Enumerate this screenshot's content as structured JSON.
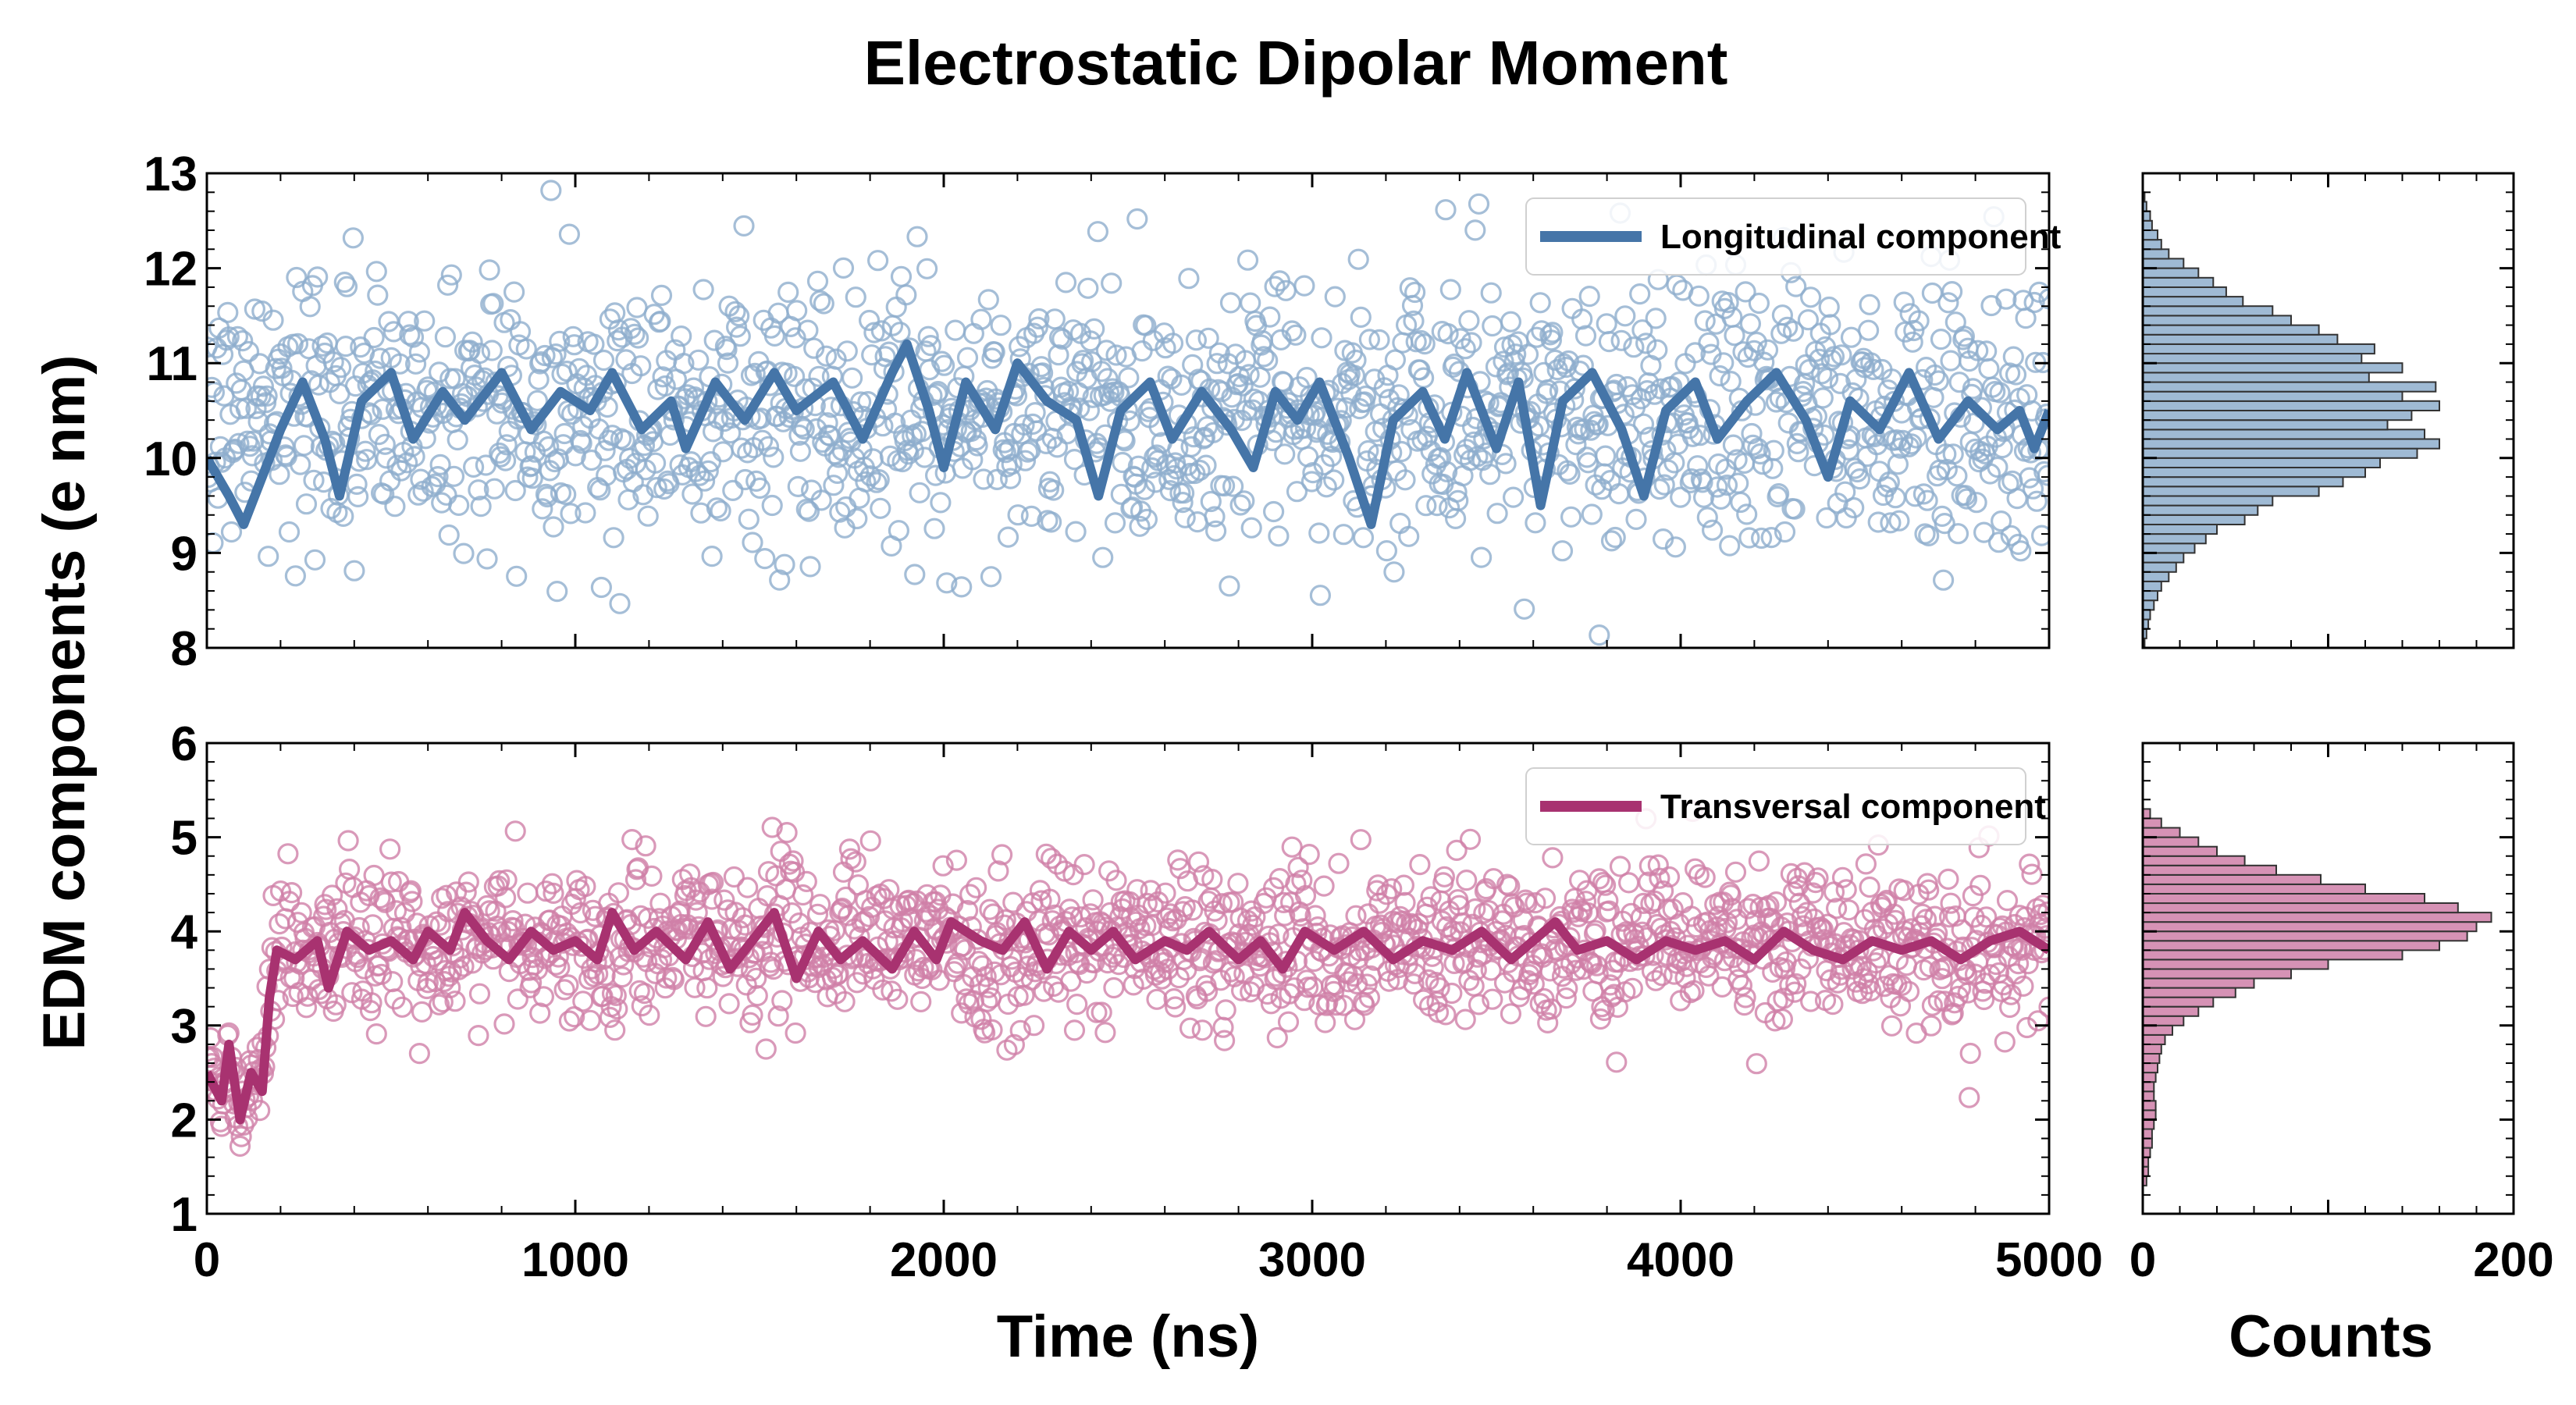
{
  "chart_data": {
    "type": "scatter",
    "title": "Electrostatic Dipolar Moment",
    "ylabel": "EDM components (e nm)",
    "xlabel": "Time (ns)",
    "hist_xlabel": "Counts",
    "xlim": [
      0,
      5000
    ],
    "xticks": [
      "0",
      "1000",
      "2000",
      "3000",
      "4000",
      "5000"
    ],
    "hist_xlim": [
      0,
      200
    ],
    "hist_xticks": [
      "0",
      "200"
    ],
    "series": [
      {
        "name": "Longitudinal component",
        "color": "#4575a8",
        "marker_color": "#8eaecd",
        "ylim": [
          8,
          13
        ],
        "yticks": [
          "8",
          "9",
          "10",
          "11",
          "12",
          "13"
        ],
        "scatter_mean": 10.5,
        "scatter_std": 0.72,
        "smoothed_points": [
          [
            0,
            10.0
          ],
          [
            60,
            9.6
          ],
          [
            100,
            9.3
          ],
          [
            140,
            9.7
          ],
          [
            200,
            10.3
          ],
          [
            260,
            10.8
          ],
          [
            320,
            10.2
          ],
          [
            360,
            9.6
          ],
          [
            420,
            10.6
          ],
          [
            500,
            10.9
          ],
          [
            560,
            10.2
          ],
          [
            640,
            10.7
          ],
          [
            700,
            10.4
          ],
          [
            800,
            10.9
          ],
          [
            880,
            10.3
          ],
          [
            960,
            10.7
          ],
          [
            1040,
            10.5
          ],
          [
            1100,
            10.9
          ],
          [
            1180,
            10.3
          ],
          [
            1260,
            10.6
          ],
          [
            1300,
            10.1
          ],
          [
            1380,
            10.8
          ],
          [
            1460,
            10.4
          ],
          [
            1540,
            10.9
          ],
          [
            1600,
            10.5
          ],
          [
            1700,
            10.8
          ],
          [
            1780,
            10.2
          ],
          [
            1860,
            10.9
          ],
          [
            1900,
            11.2
          ],
          [
            1960,
            10.5
          ],
          [
            2000,
            9.9
          ],
          [
            2060,
            10.8
          ],
          [
            2140,
            10.3
          ],
          [
            2200,
            11.0
          ],
          [
            2280,
            10.6
          ],
          [
            2360,
            10.4
          ],
          [
            2420,
            9.6
          ],
          [
            2480,
            10.5
          ],
          [
            2560,
            10.8
          ],
          [
            2620,
            10.2
          ],
          [
            2700,
            10.7
          ],
          [
            2780,
            10.3
          ],
          [
            2840,
            9.9
          ],
          [
            2900,
            10.7
          ],
          [
            2960,
            10.4
          ],
          [
            3020,
            10.8
          ],
          [
            3100,
            10.0
          ],
          [
            3160,
            9.3
          ],
          [
            3220,
            10.4
          ],
          [
            3300,
            10.7
          ],
          [
            3360,
            10.2
          ],
          [
            3420,
            10.9
          ],
          [
            3500,
            10.1
          ],
          [
            3560,
            10.8
          ],
          [
            3620,
            9.5
          ],
          [
            3680,
            10.6
          ],
          [
            3760,
            10.9
          ],
          [
            3840,
            10.3
          ],
          [
            3900,
            9.6
          ],
          [
            3960,
            10.5
          ],
          [
            4040,
            10.8
          ],
          [
            4100,
            10.2
          ],
          [
            4180,
            10.6
          ],
          [
            4260,
            10.9
          ],
          [
            4340,
            10.4
          ],
          [
            4400,
            9.8
          ],
          [
            4460,
            10.6
          ],
          [
            4540,
            10.3
          ],
          [
            4620,
            10.9
          ],
          [
            4700,
            10.2
          ],
          [
            4780,
            10.6
          ],
          [
            4860,
            10.3
          ],
          [
            4920,
            10.5
          ],
          [
            4960,
            10.1
          ],
          [
            5000,
            10.5
          ]
        ],
        "hist_bins": [
          8.0,
          8.1,
          8.2,
          8.3,
          8.4,
          8.5,
          8.6,
          8.7,
          8.8,
          8.9,
          9.0,
          9.1,
          9.2,
          9.3,
          9.4,
          9.5,
          9.6,
          9.7,
          9.8,
          9.9,
          10.0,
          10.1,
          10.2,
          10.3,
          10.4,
          10.5,
          10.6,
          10.7,
          10.8,
          10.9,
          11.0,
          11.1,
          11.2,
          11.3,
          11.4,
          11.5,
          11.6,
          11.7,
          11.8,
          11.9,
          12.0,
          12.1,
          12.2,
          12.3,
          12.4,
          12.5,
          12.6,
          12.7
        ],
        "hist_counts": [
          1,
          2,
          3,
          4,
          6,
          8,
          10,
          14,
          18,
          22,
          28,
          34,
          40,
          55,
          62,
          70,
          95,
          108,
          120,
          128,
          148,
          160,
          152,
          132,
          145,
          160,
          140,
          158,
          122,
          140,
          118,
          125,
          105,
          95,
          80,
          70,
          54,
          45,
          38,
          30,
          22,
          14,
          10,
          8,
          5,
          4,
          2,
          1
        ]
      },
      {
        "name": "Transversal component",
        "color": "#a83270",
        "marker_color": "#cf7fa8",
        "ylim": [
          1,
          6
        ],
        "yticks": [
          "1",
          "2",
          "3",
          "4",
          "5",
          "6"
        ],
        "scatter_mean": 3.88,
        "scatter_std": 0.42,
        "smoothed_points": [
          [
            0,
            2.5
          ],
          [
            40,
            2.2
          ],
          [
            60,
            2.8
          ],
          [
            90,
            2.0
          ],
          [
            120,
            2.5
          ],
          [
            150,
            2.3
          ],
          [
            170,
            3.3
          ],
          [
            190,
            3.8
          ],
          [
            240,
            3.7
          ],
          [
            300,
            3.9
          ],
          [
            330,
            3.4
          ],
          [
            380,
            4.0
          ],
          [
            440,
            3.8
          ],
          [
            500,
            3.9
          ],
          [
            560,
            3.7
          ],
          [
            600,
            4.0
          ],
          [
            660,
            3.8
          ],
          [
            700,
            4.2
          ],
          [
            760,
            3.9
          ],
          [
            820,
            3.7
          ],
          [
            880,
            4.0
          ],
          [
            940,
            3.8
          ],
          [
            1000,
            3.9
          ],
          [
            1060,
            3.7
          ],
          [
            1100,
            4.2
          ],
          [
            1160,
            3.8
          ],
          [
            1220,
            4.0
          ],
          [
            1300,
            3.7
          ],
          [
            1360,
            4.1
          ],
          [
            1420,
            3.6
          ],
          [
            1480,
            3.9
          ],
          [
            1540,
            4.2
          ],
          [
            1600,
            3.5
          ],
          [
            1660,
            4.0
          ],
          [
            1720,
            3.7
          ],
          [
            1780,
            3.9
          ],
          [
            1860,
            3.6
          ],
          [
            1920,
            4.0
          ],
          [
            1980,
            3.7
          ],
          [
            2020,
            4.1
          ],
          [
            2100,
            3.9
          ],
          [
            2160,
            3.8
          ],
          [
            2220,
            4.1
          ],
          [
            2280,
            3.6
          ],
          [
            2340,
            4.0
          ],
          [
            2400,
            3.8
          ],
          [
            2460,
            4.0
          ],
          [
            2520,
            3.7
          ],
          [
            2600,
            3.9
          ],
          [
            2660,
            3.8
          ],
          [
            2720,
            4.0
          ],
          [
            2800,
            3.7
          ],
          [
            2860,
            3.9
          ],
          [
            2920,
            3.6
          ],
          [
            2980,
            4.0
          ],
          [
            3060,
            3.8
          ],
          [
            3140,
            4.0
          ],
          [
            3220,
            3.7
          ],
          [
            3300,
            3.9
          ],
          [
            3380,
            3.8
          ],
          [
            3460,
            4.0
          ],
          [
            3540,
            3.7
          ],
          [
            3600,
            3.9
          ],
          [
            3660,
            4.1
          ],
          [
            3720,
            3.8
          ],
          [
            3800,
            3.9
          ],
          [
            3880,
            3.7
          ],
          [
            3960,
            3.9
          ],
          [
            4040,
            3.8
          ],
          [
            4120,
            3.9
          ],
          [
            4200,
            3.7
          ],
          [
            4280,
            4.0
          ],
          [
            4360,
            3.8
          ],
          [
            4440,
            3.7
          ],
          [
            4520,
            3.9
          ],
          [
            4600,
            3.8
          ],
          [
            4680,
            3.9
          ],
          [
            4760,
            3.7
          ],
          [
            4840,
            3.9
          ],
          [
            4920,
            4.0
          ],
          [
            5000,
            3.8
          ]
        ],
        "hist_bins": [
          1.3,
          1.4,
          1.5,
          1.6,
          1.7,
          1.8,
          1.9,
          2.0,
          2.1,
          2.2,
          2.3,
          2.4,
          2.5,
          2.6,
          2.7,
          2.8,
          2.9,
          3.0,
          3.1,
          3.2,
          3.3,
          3.4,
          3.5,
          3.6,
          3.7,
          3.8,
          3.9,
          4.0,
          4.1,
          4.2,
          4.3,
          4.4,
          4.5,
          4.6,
          4.7,
          4.8,
          4.9,
          5.0,
          5.1,
          5.2
        ],
        "hist_counts": [
          2,
          3,
          3,
          4,
          5,
          5,
          6,
          7,
          7,
          6,
          6,
          7,
          8,
          9,
          10,
          12,
          16,
          22,
          30,
          38,
          50,
          60,
          80,
          100,
          140,
          160,
          175,
          180,
          188,
          170,
          152,
          120,
          96,
          72,
          55,
          40,
          30,
          20,
          10,
          4
        ]
      }
    ]
  }
}
